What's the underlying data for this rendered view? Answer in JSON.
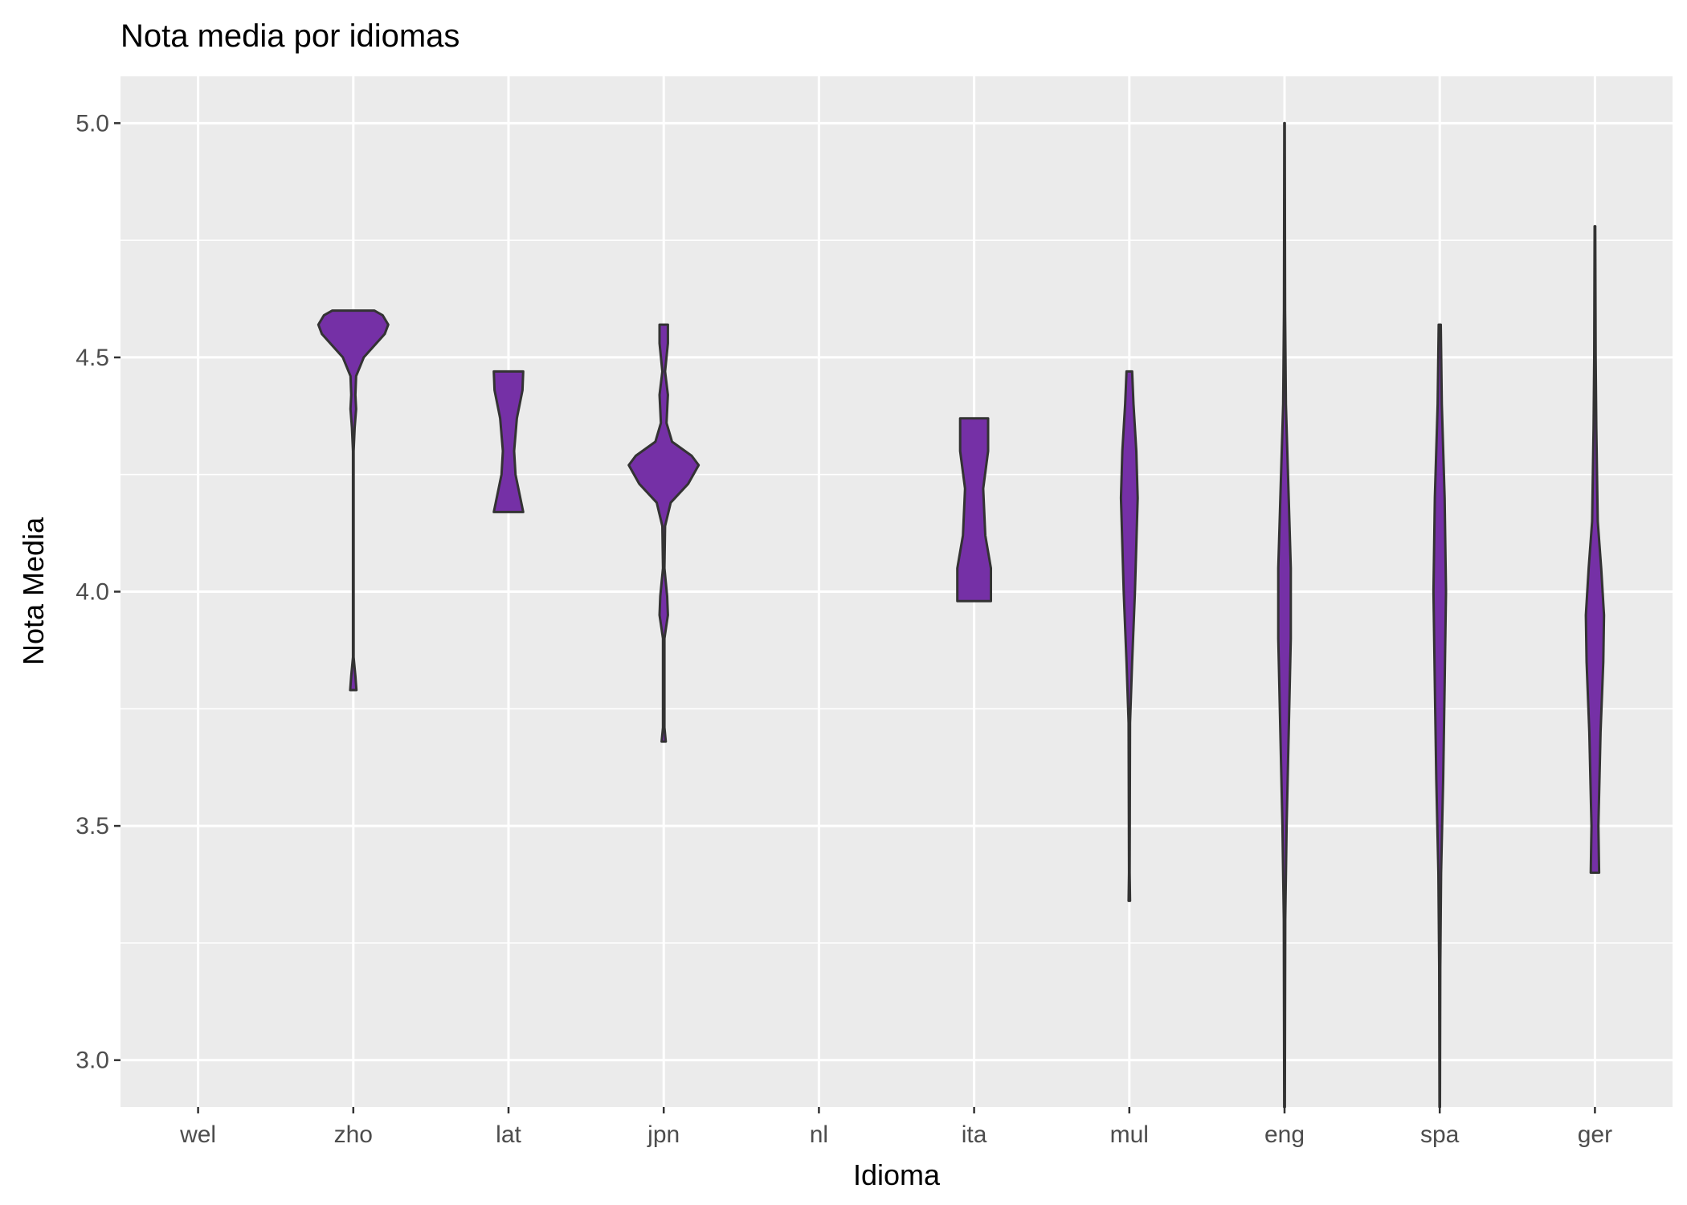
{
  "chart_data": {
    "type": "violin",
    "title": "Nota media por idiomas",
    "xlabel": "Idioma",
    "ylabel": "Nota Media",
    "ylim": [
      2.9,
      5.1
    ],
    "yticks": [
      3.0,
      3.5,
      4.0,
      4.5,
      5.0
    ],
    "grid": true,
    "fill_color": "#7530A6",
    "outline_color": "#333333",
    "panel_color": "#EBEBEB",
    "categories": [
      "wel",
      "zho",
      "lat",
      "jpn",
      "nl",
      "ita",
      "mul",
      "eng",
      "spa",
      "ger"
    ],
    "violins": [
      {
        "category": "wel",
        "profile": []
      },
      {
        "category": "zho",
        "profile": [
          [
            3.79,
            0.045
          ],
          [
            3.82,
            0.03
          ],
          [
            3.86,
            0.005
          ],
          [
            4.3,
            0.005
          ],
          [
            4.35,
            0.02
          ],
          [
            4.39,
            0.04
          ],
          [
            4.42,
            0.03
          ],
          [
            4.46,
            0.04
          ],
          [
            4.5,
            0.15
          ],
          [
            4.55,
            0.45
          ],
          [
            4.57,
            0.5
          ],
          [
            4.59,
            0.42
          ],
          [
            4.6,
            0.3
          ]
        ]
      },
      {
        "category": "lat",
        "profile": [
          [
            4.17,
            0.21
          ],
          [
            4.25,
            0.1
          ],
          [
            4.3,
            0.08
          ],
          [
            4.37,
            0.12
          ],
          [
            4.43,
            0.2
          ],
          [
            4.47,
            0.21
          ]
        ]
      },
      {
        "category": "jpn",
        "profile": [
          [
            3.68,
            0.03
          ],
          [
            3.71,
            0.01
          ],
          [
            3.9,
            0.01
          ],
          [
            3.95,
            0.06
          ],
          [
            3.99,
            0.05
          ],
          [
            4.05,
            0.01
          ],
          [
            4.14,
            0.02
          ],
          [
            4.19,
            0.1
          ],
          [
            4.23,
            0.35
          ],
          [
            4.27,
            0.5
          ],
          [
            4.29,
            0.4
          ],
          [
            4.32,
            0.12
          ],
          [
            4.36,
            0.04
          ],
          [
            4.42,
            0.06
          ],
          [
            4.47,
            0.02
          ],
          [
            4.53,
            0.06
          ],
          [
            4.57,
            0.06
          ]
        ]
      },
      {
        "category": "nl",
        "profile": []
      },
      {
        "category": "ita",
        "profile": [
          [
            3.98,
            0.24
          ],
          [
            4.05,
            0.24
          ],
          [
            4.12,
            0.16
          ],
          [
            4.22,
            0.13
          ],
          [
            4.3,
            0.2
          ],
          [
            4.37,
            0.2
          ]
        ]
      },
      {
        "category": "mul",
        "profile": [
          [
            3.34,
            0.01
          ],
          [
            3.4,
            0.005
          ],
          [
            3.72,
            0.01
          ],
          [
            3.85,
            0.04
          ],
          [
            4.0,
            0.08
          ],
          [
            4.1,
            0.1
          ],
          [
            4.2,
            0.12
          ],
          [
            4.3,
            0.1
          ],
          [
            4.4,
            0.06
          ],
          [
            4.47,
            0.04
          ]
        ]
      },
      {
        "category": "eng",
        "profile": [
          [
            2.9,
            0.005
          ],
          [
            3.3,
            0.01
          ],
          [
            3.5,
            0.03
          ],
          [
            3.7,
            0.06
          ],
          [
            3.9,
            0.09
          ],
          [
            4.05,
            0.09
          ],
          [
            4.2,
            0.06
          ],
          [
            4.4,
            0.02
          ],
          [
            4.6,
            0.008
          ],
          [
            5.0,
            0.003
          ]
        ]
      },
      {
        "category": "spa",
        "profile": [
          [
            2.9,
            0.004
          ],
          [
            3.2,
            0.008
          ],
          [
            3.4,
            0.02
          ],
          [
            3.6,
            0.05
          ],
          [
            3.8,
            0.07
          ],
          [
            4.0,
            0.09
          ],
          [
            4.2,
            0.07
          ],
          [
            4.4,
            0.03
          ],
          [
            4.57,
            0.015
          ]
        ]
      },
      {
        "category": "ger",
        "profile": [
          [
            3.4,
            0.06
          ],
          [
            3.5,
            0.05
          ],
          [
            3.7,
            0.08
          ],
          [
            3.85,
            0.12
          ],
          [
            3.95,
            0.13
          ],
          [
            4.05,
            0.09
          ],
          [
            4.15,
            0.04
          ],
          [
            4.35,
            0.02
          ],
          [
            4.5,
            0.01
          ],
          [
            4.78,
            0.005
          ]
        ]
      }
    ]
  }
}
